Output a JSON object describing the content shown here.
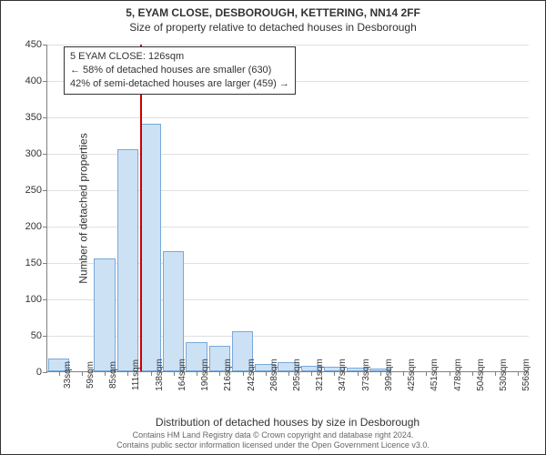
{
  "title": "5, EYAM CLOSE, DESBOROUGH, KETTERING, NN14 2FF",
  "subtitle": "Size of property relative to detached houses in Desborough",
  "chart": {
    "type": "histogram",
    "ylabel": "Number of detached properties",
    "xlabel": "Distribution of detached houses by size in Desborough",
    "ylim": [
      0,
      450
    ],
    "ytick_step": 50,
    "yticks": [
      0,
      50,
      100,
      150,
      200,
      250,
      300,
      350,
      400,
      450
    ],
    "x_categories": [
      "33sqm",
      "59sqm",
      "85sqm",
      "111sqm",
      "138sqm",
      "164sqm",
      "190sqm",
      "216sqm",
      "242sqm",
      "268sqm",
      "295sqm",
      "321sqm",
      "347sqm",
      "373sqm",
      "399sqm",
      "425sqm",
      "451sqm",
      "478sqm",
      "504sqm",
      "530sqm",
      "556sqm"
    ],
    "xtick_every": 1,
    "bar_values": [
      18,
      0,
      155,
      305,
      340,
      165,
      40,
      35,
      55,
      10,
      12,
      8,
      6,
      5,
      4,
      0,
      0,
      0,
      0,
      0,
      0
    ],
    "bar_fill": "#cde1f5",
    "bar_border": "#78a8d8",
    "background_color": "#ffffff",
    "grid_color": "#e0e0e0",
    "axis_color": "#808080",
    "tick_fontsize": 10,
    "label_fontsize": 12,
    "title_fontsize": 12,
    "marker": {
      "position_sqm": 126,
      "color": "#cc0000"
    },
    "callout": {
      "line1": "5 EYAM CLOSE: 126sqm",
      "line2": "← 58% of detached houses are smaller (630)",
      "line3": "42% of semi-detached houses are larger (459) →",
      "border": "#333333",
      "background": "#ffffff"
    }
  },
  "footer": {
    "line1": "Contains HM Land Registry data © Crown copyright and database right 2024.",
    "line2": "Contains public sector information licensed under the Open Government Licence v3.0."
  }
}
